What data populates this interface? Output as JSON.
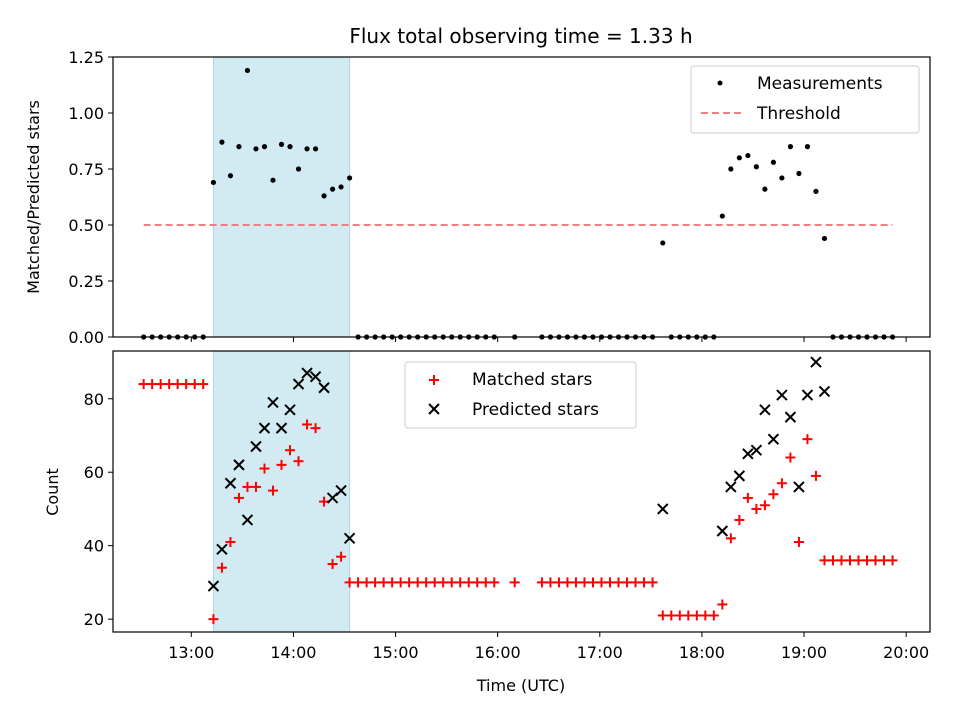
{
  "figure_title": "Flux total observing time = 1.33 h",
  "colors": {
    "measurement": "#000000",
    "threshold": "#f08080",
    "shade": "#add8e6",
    "matched": "#ff0000",
    "predicted": "#000000"
  },
  "chart_data": [
    {
      "type": "scatter",
      "panel": "top",
      "xlabel": "",
      "ylabel": "Matched/Predicted stars",
      "xlim": [
        "12:14",
        "20:14"
      ],
      "ylim": [
        0,
        1.25
      ],
      "yticks": [
        "0.00",
        "0.25",
        "0.50",
        "0.75",
        "1.00",
        "1.25"
      ],
      "xtick_positions": [
        "13:00",
        "14:00",
        "15:00",
        "16:00",
        "17:00",
        "18:00",
        "19:00",
        "20:00"
      ],
      "tick_labels_visible": false,
      "legend_position": "top-right",
      "legend": [
        "Measurements",
        "Threshold"
      ],
      "shaded_span": [
        "13:13",
        "14:33"
      ],
      "threshold": {
        "value": 0.5,
        "x_range": [
          "12:32",
          "19:52"
        ],
        "style": "dashed"
      },
      "series": [
        {
          "name": "Measurements",
          "points": [
            [
              "12:32",
              0.0
            ],
            [
              "12:37",
              0.0
            ],
            [
              "12:42",
              0.0
            ],
            [
              "12:47",
              0.0
            ],
            [
              "12:52",
              0.0
            ],
            [
              "12:57",
              0.0
            ],
            [
              "13:02",
              0.0
            ],
            [
              "13:07",
              0.0
            ],
            [
              "13:13",
              0.69
            ],
            [
              "13:18",
              0.87
            ],
            [
              "13:23",
              0.72
            ],
            [
              "13:28",
              0.85
            ],
            [
              "13:33",
              1.19
            ],
            [
              "13:38",
              0.84
            ],
            [
              "13:43",
              0.85
            ],
            [
              "13:48",
              0.7
            ],
            [
              "13:53",
              0.86
            ],
            [
              "13:58",
              0.85
            ],
            [
              "14:03",
              0.75
            ],
            [
              "14:08",
              0.84
            ],
            [
              "14:13",
              0.84
            ],
            [
              "14:18",
              0.63
            ],
            [
              "14:23",
              0.66
            ],
            [
              "14:28",
              0.67
            ],
            [
              "14:33",
              0.71
            ],
            [
              "14:38",
              0.0
            ],
            [
              "14:43",
              0.0
            ],
            [
              "14:48",
              0.0
            ],
            [
              "14:53",
              0.0
            ],
            [
              "14:58",
              0.0
            ],
            [
              "15:03",
              0.0
            ],
            [
              "15:08",
              0.0
            ],
            [
              "15:13",
              0.0
            ],
            [
              "15:18",
              0.0
            ],
            [
              "15:23",
              0.0
            ],
            [
              "15:28",
              0.0
            ],
            [
              "15:33",
              0.0
            ],
            [
              "15:38",
              0.0
            ],
            [
              "15:43",
              0.0
            ],
            [
              "15:48",
              0.0
            ],
            [
              "15:53",
              0.0
            ],
            [
              "15:58",
              0.0
            ],
            [
              "16:10",
              0.0
            ],
            [
              "16:26",
              0.0
            ],
            [
              "16:31",
              0.0
            ],
            [
              "16:36",
              0.0
            ],
            [
              "16:41",
              0.0
            ],
            [
              "16:46",
              0.0
            ],
            [
              "16:51",
              0.0
            ],
            [
              "16:56",
              0.0
            ],
            [
              "17:01",
              0.0
            ],
            [
              "17:06",
              0.0
            ],
            [
              "17:11",
              0.0
            ],
            [
              "17:16",
              0.0
            ],
            [
              "17:21",
              0.0
            ],
            [
              "17:26",
              0.0
            ],
            [
              "17:31",
              0.0
            ],
            [
              "17:37",
              0.42
            ],
            [
              "17:42",
              0.0
            ],
            [
              "17:47",
              0.0
            ],
            [
              "17:52",
              0.0
            ],
            [
              "17:57",
              0.0
            ],
            [
              "18:02",
              0.0
            ],
            [
              "18:07",
              0.0
            ],
            [
              "18:12",
              0.54
            ],
            [
              "18:17",
              0.75
            ],
            [
              "18:22",
              0.8
            ],
            [
              "18:27",
              0.81
            ],
            [
              "18:32",
              0.76
            ],
            [
              "18:37",
              0.66
            ],
            [
              "18:42",
              0.78
            ],
            [
              "18:47",
              0.71
            ],
            [
              "18:52",
              0.85
            ],
            [
              "18:57",
              0.73
            ],
            [
              "19:02",
              0.85
            ],
            [
              "19:07",
              0.65
            ],
            [
              "19:12",
              0.44
            ],
            [
              "19:17",
              0.0
            ],
            [
              "19:22",
              0.0
            ],
            [
              "19:27",
              0.0
            ],
            [
              "19:32",
              0.0
            ],
            [
              "19:37",
              0.0
            ],
            [
              "19:42",
              0.0
            ],
            [
              "19:47",
              0.0
            ],
            [
              "19:52",
              0.0
            ]
          ]
        }
      ]
    },
    {
      "type": "scatter",
      "panel": "bottom",
      "xlabel": "Time (UTC)",
      "ylabel": "Count",
      "xlim": [
        "12:14",
        "20:14"
      ],
      "ylim": [
        16.5,
        93
      ],
      "yticks": [
        "20",
        "40",
        "60",
        "80"
      ],
      "xticks": [
        "13:00",
        "14:00",
        "15:00",
        "16:00",
        "17:00",
        "18:00",
        "19:00",
        "20:00"
      ],
      "legend_position": "top-center",
      "legend": [
        "Matched stars",
        "Predicted stars"
      ],
      "shaded_span": [
        "13:13",
        "14:33"
      ],
      "series": [
        {
          "name": "Matched stars",
          "marker": "plus",
          "points": [
            [
              "12:32",
              84
            ],
            [
              "12:37",
              84
            ],
            [
              "12:42",
              84
            ],
            [
              "12:47",
              84
            ],
            [
              "12:52",
              84
            ],
            [
              "12:57",
              84
            ],
            [
              "13:02",
              84
            ],
            [
              "13:07",
              84
            ],
            [
              "13:13",
              20
            ],
            [
              "13:18",
              34
            ],
            [
              "13:23",
              41
            ],
            [
              "13:28",
              53
            ],
            [
              "13:33",
              56
            ],
            [
              "13:38",
              56
            ],
            [
              "13:43",
              61
            ],
            [
              "13:48",
              55
            ],
            [
              "13:53",
              62
            ],
            [
              "13:58",
              66
            ],
            [
              "14:03",
              63
            ],
            [
              "14:08",
              73
            ],
            [
              "14:13",
              72
            ],
            [
              "14:18",
              52
            ],
            [
              "14:23",
              35
            ],
            [
              "14:28",
              37
            ],
            [
              "14:33",
              30
            ],
            [
              "14:38",
              30
            ],
            [
              "14:43",
              30
            ],
            [
              "14:48",
              30
            ],
            [
              "14:53",
              30
            ],
            [
              "14:58",
              30
            ],
            [
              "15:03",
              30
            ],
            [
              "15:08",
              30
            ],
            [
              "15:13",
              30
            ],
            [
              "15:18",
              30
            ],
            [
              "15:23",
              30
            ],
            [
              "15:28",
              30
            ],
            [
              "15:33",
              30
            ],
            [
              "15:38",
              30
            ],
            [
              "15:43",
              30
            ],
            [
              "15:48",
              30
            ],
            [
              "15:53",
              30
            ],
            [
              "15:58",
              30
            ],
            [
              "16:10",
              30
            ],
            [
              "16:26",
              30
            ],
            [
              "16:31",
              30
            ],
            [
              "16:36",
              30
            ],
            [
              "16:41",
              30
            ],
            [
              "16:46",
              30
            ],
            [
              "16:51",
              30
            ],
            [
              "16:56",
              30
            ],
            [
              "17:01",
              30
            ],
            [
              "17:06",
              30
            ],
            [
              "17:11",
              30
            ],
            [
              "17:16",
              30
            ],
            [
              "17:21",
              30
            ],
            [
              "17:26",
              30
            ],
            [
              "17:31",
              30
            ],
            [
              "17:37",
              21
            ],
            [
              "17:42",
              21
            ],
            [
              "17:47",
              21
            ],
            [
              "17:52",
              21
            ],
            [
              "17:57",
              21
            ],
            [
              "18:02",
              21
            ],
            [
              "18:07",
              21
            ],
            [
              "18:12",
              24
            ],
            [
              "18:17",
              42
            ],
            [
              "18:22",
              47
            ],
            [
              "18:27",
              53
            ],
            [
              "18:32",
              50
            ],
            [
              "18:37",
              51
            ],
            [
              "18:42",
              54
            ],
            [
              "18:47",
              57
            ],
            [
              "18:52",
              64
            ],
            [
              "18:57",
              41
            ],
            [
              "19:02",
              69
            ],
            [
              "19:07",
              59
            ],
            [
              "19:12",
              36
            ],
            [
              "19:17",
              36
            ],
            [
              "19:22",
              36
            ],
            [
              "19:27",
              36
            ],
            [
              "19:32",
              36
            ],
            [
              "19:37",
              36
            ],
            [
              "19:42",
              36
            ],
            [
              "19:47",
              36
            ],
            [
              "19:52",
              36
            ]
          ]
        },
        {
          "name": "Predicted stars",
          "marker": "x",
          "points": [
            [
              "13:13",
              29
            ],
            [
              "13:18",
              39
            ],
            [
              "13:23",
              57
            ],
            [
              "13:28",
              62
            ],
            [
              "13:33",
              47
            ],
            [
              "13:38",
              67
            ],
            [
              "13:43",
              72
            ],
            [
              "13:48",
              79
            ],
            [
              "13:53",
              72
            ],
            [
              "13:58",
              77
            ],
            [
              "14:03",
              84
            ],
            [
              "14:08",
              87
            ],
            [
              "14:13",
              86
            ],
            [
              "14:18",
              83
            ],
            [
              "14:23",
              53
            ],
            [
              "14:28",
              55
            ],
            [
              "14:33",
              42
            ],
            [
              "17:37",
              50
            ],
            [
              "18:12",
              44
            ],
            [
              "18:17",
              56
            ],
            [
              "18:22",
              59
            ],
            [
              "18:27",
              65
            ],
            [
              "18:32",
              66
            ],
            [
              "18:37",
              77
            ],
            [
              "18:42",
              69
            ],
            [
              "18:47",
              81
            ],
            [
              "18:52",
              75
            ],
            [
              "18:57",
              56
            ],
            [
              "19:02",
              81
            ],
            [
              "19:07",
              90
            ],
            [
              "19:12",
              82
            ]
          ]
        }
      ]
    }
  ]
}
